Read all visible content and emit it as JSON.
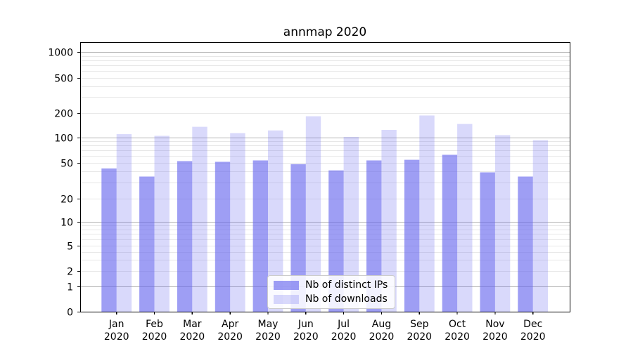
{
  "figure": {
    "title": "annmap 2020"
  },
  "chart_data": {
    "type": "bar",
    "title": "annmap 2020",
    "categories": [
      "Jan",
      "Feb",
      "Mar",
      "Apr",
      "May",
      "Jun",
      "Jul",
      "Aug",
      "Sep",
      "Oct",
      "Nov",
      "Dec"
    ],
    "category_year": "2020",
    "series": [
      {
        "name": "Nb of distinct IPs",
        "base_color": "#6666ee",
        "alpha": 0.63,
        "color_on_white": "#a0a0f0",
        "values": [
          43,
          35,
          52,
          51,
          53,
          48,
          41,
          53,
          54,
          62,
          39,
          35
        ]
      },
      {
        "name": "Nb of downloads",
        "base_color": "#6666ee",
        "alpha": 0.25,
        "color_on_white": "#d8d8f8",
        "values": [
          110,
          105,
          135,
          113,
          122,
          181,
          102,
          124,
          185,
          146,
          107,
          93
        ]
      }
    ],
    "y_axis": {
      "scale": "symlog",
      "ylim": [
        0,
        1300
      ],
      "tick_values": [
        0,
        1,
        2,
        5,
        10,
        20,
        50,
        100,
        200,
        500,
        1000
      ],
      "tick_labels": [
        "0",
        "1",
        "2",
        "5",
        "10",
        "20",
        "50",
        "100",
        "200",
        "500",
        "1000"
      ],
      "major_grid_values": [
        1,
        10,
        100,
        1000
      ],
      "minor_grid_values": [
        2,
        3,
        4,
        5,
        6,
        7,
        8,
        9,
        20,
        30,
        40,
        50,
        60,
        70,
        80,
        90,
        200,
        300,
        400,
        500,
        600,
        700,
        800,
        900
      ]
    },
    "legend": {
      "position": "lower center",
      "entries": [
        "Nb of distinct IPs",
        "Nb of downloads"
      ]
    },
    "grid": true
  },
  "colors": {
    "grid_major": "#b3b3b3",
    "grid_minor": "#e7e7e7",
    "axis": "#000000",
    "text": "#000000",
    "background": "#ffffff"
  }
}
